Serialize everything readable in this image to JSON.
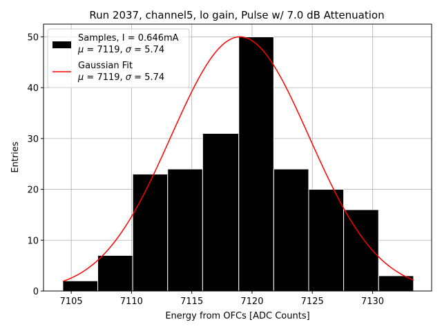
{
  "chart_data": {
    "type": "bar",
    "title": "Run 2037, channel5, lo gain, Pulse w/ 7.0 dB Attenuation",
    "xlabel": "Energy from OFCs [ADC Counts]",
    "ylabel": "Entries",
    "xlim": [
      7102.7,
      7134.9
    ],
    "ylim": [
      0,
      52.5
    ],
    "grid": true,
    "xticks": [
      7105,
      7110,
      7115,
      7120,
      7125,
      7130
    ],
    "yticks": [
      0,
      10,
      20,
      30,
      40,
      50
    ],
    "bins": [
      {
        "x0": 7104.3,
        "x1": 7107.2,
        "count": 2
      },
      {
        "x0": 7107.2,
        "x1": 7110.1,
        "count": 7
      },
      {
        "x0": 7110.1,
        "x1": 7113.0,
        "count": 23
      },
      {
        "x0": 7113.0,
        "x1": 7115.9,
        "count": 24
      },
      {
        "x0": 7115.9,
        "x1": 7118.9,
        "count": 31
      },
      {
        "x0": 7118.9,
        "x1": 7121.8,
        "count": 50
      },
      {
        "x0": 7121.8,
        "x1": 7124.7,
        "count": 24
      },
      {
        "x0": 7124.7,
        "x1": 7127.6,
        "count": 20
      },
      {
        "x0": 7127.6,
        "x1": 7130.5,
        "count": 16
      },
      {
        "x0": 7130.5,
        "x1": 7133.4,
        "count": 3
      }
    ],
    "fit": {
      "name": "Gaussian Fit",
      "amplitude": 50,
      "mu": 7119,
      "sigma": 5.74,
      "x_range": [
        7104.3,
        7133.4
      ],
      "color": "#ff0000"
    },
    "hist_color": "#000000",
    "legend_position": "top-left",
    "legend": [
      {
        "line1": "Samples, I = 0.646mA",
        "line2_prefix": "μ",
        "line2_mid": " = 7119, ",
        "line2_sig": "σ",
        "line2_end": " = 5.74"
      },
      {
        "line1": "Gaussian Fit",
        "line2_prefix": "μ",
        "line2_mid": " = 7119, ",
        "line2_sig": "σ",
        "line2_end": " = 5.74"
      }
    ]
  }
}
